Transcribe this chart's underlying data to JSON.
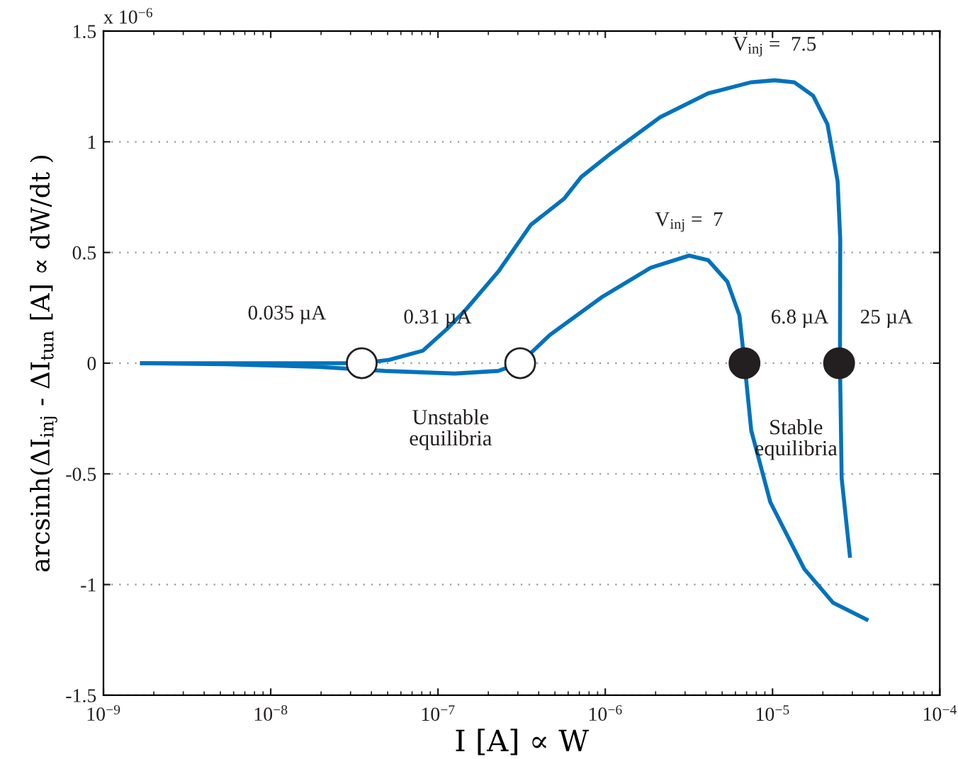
{
  "chart_data": {
    "type": "line",
    "xlabel": "I [A] ∝ W",
    "ylabel": "arcsinh(ΔI$_{inj}$ - ΔI$_{tun}$ [A] ∝ dW/dt )",
    "log": "x",
    "grid": "y",
    "marker": "none",
    "line_style": "solid",
    "xlim": [
      1e-09,
      0.0001
    ],
    "ylim": [
      -1.5,
      1.5
    ],
    "xticks": [
      {
        "value": 1e-09,
        "label": "10$^{−9}$"
      },
      {
        "value": 1e-08,
        "label": "10$^{−8}$"
      },
      {
        "value": 1e-07,
        "label": "10$^{−7}$"
      },
      {
        "value": 1e-06,
        "label": "10$^{−6}$"
      },
      {
        "value": 1e-05,
        "label": "10$^{−5}$"
      },
      {
        "value": 0.0001,
        "label": "10$^{−4}$"
      }
    ],
    "yticks": [
      -1.5,
      -1,
      -0.5,
      0,
      0.5,
      1,
      1.5
    ],
    "series": [
      {
        "color": "#0072bd",
        "x": [
          1.7e-09,
          5.5e-09,
          1.5e-08,
          3.5e-08,
          5.1e-08,
          8.1e-08,
          1.13e-07,
          1.46e-07,
          2.29e-07,
          3.59e-07,
          5.69e-07,
          7.18e-07,
          1.09e-06,
          2.13e-06,
          4.13e-06,
          7.46e-06,
          1.03e-05,
          1.35e-05,
          1.75e-05,
          2.13e-05,
          2.45e-05,
          2.54e-05,
          2.53e-05,
          2.59e-05,
          2.9e-05
        ],
        "values": [
          0,
          0,
          0,
          0,
          0.015,
          0.056,
          0.154,
          0.24,
          0.413,
          0.625,
          0.744,
          0.841,
          0.95,
          1.111,
          1.219,
          1.269,
          1.278,
          1.269,
          1.208,
          1.079,
          0.822,
          0.56,
          0,
          -0.52,
          -0.87
        ]
      },
      {
        "color": "#0072bd",
        "x": [
          1.7e-09,
          5.4e-09,
          1.95e-08,
          4.8e-08,
          1.26e-07,
          2.29e-07,
          3.1e-07,
          4.67e-07,
          9.66e-07,
          1.87e-06,
          3.17e-06,
          4.13e-06,
          5.37e-06,
          6.34e-06,
          6.8e-06,
          7.46e-06,
          9.7e-06,
          1.55e-05,
          2.3e-05,
          3.65e-05
        ],
        "values": [
          0,
          -0.005,
          -0.017,
          -0.035,
          -0.047,
          -0.035,
          0,
          0.128,
          0.301,
          0.431,
          0.486,
          0.465,
          0.368,
          0.216,
          0,
          -0.304,
          -0.628,
          -0.93,
          -1.082,
          -1.158
        ]
      },
      {
        "type": "scatter",
        "marker": "circle",
        "color": "#ffffff",
        "x": [
          3.5e-08,
          3.1e-07
        ],
        "values": [
          0,
          0
        ]
      },
      {
        "type": "scatter",
        "marker": "circle",
        "color": "#231f20",
        "x": [
          6.8e-06,
          2.5e-05
        ],
        "values": [
          0,
          0
        ]
      }
    ],
    "annotations": [
      "x 10$^{−6}$",
      {
        "text": "0.035 µA",
        "x": 3.5e-08,
        "y": 0
      },
      {
        "text": "0.31 µA",
        "x": 3.1e-07,
        "y": 0
      },
      "Unstable\nequilibria",
      {
        "text": "6.8 µA",
        "x": 6.8e-06,
        "y": 0
      },
      {
        "text": "25 µA",
        "x": 2.5e-05,
        "y": 0
      },
      "Stable\nequilibria",
      {
        "text": "V$_{inj}$ =  7.5",
        "x": 1.03e-05,
        "y": 1.278
      },
      {
        "text": "V$_{inj}$ =  7",
        "x": 3.17e-06,
        "y": 0.486
      }
    ]
  }
}
